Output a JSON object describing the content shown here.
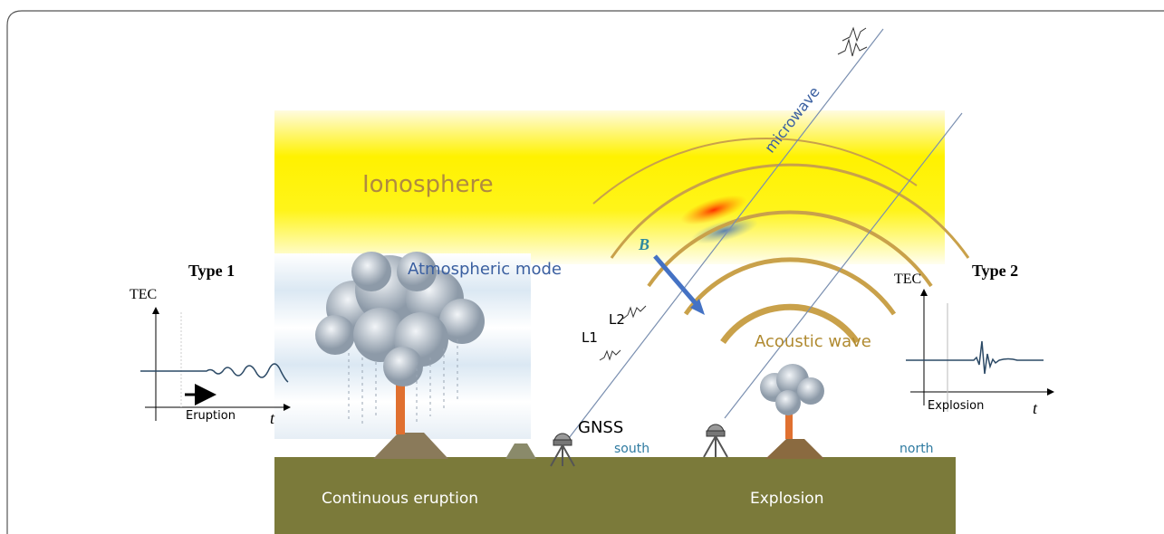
{
  "scene": {
    "ionosphere": "Ionosphere",
    "atmospheric_mode": "Atmospheric mode",
    "microwave": "microwave",
    "magnetic_field": "B",
    "l2": "L2",
    "l1": "L1",
    "acoustic_wave": "Acoustic wave",
    "receiver": "GNSS",
    "south": "south",
    "north": "north",
    "left_ground": "Continuous eruption",
    "right_ground": "Explosion"
  },
  "insets": [
    {
      "title": "Type 1",
      "y_axis": "TEC",
      "event": "Eruption",
      "x_axis": "t"
    },
    {
      "title": "Type 2",
      "y_axis": "TEC",
      "event": "Explosion",
      "x_axis": "t"
    }
  ]
}
